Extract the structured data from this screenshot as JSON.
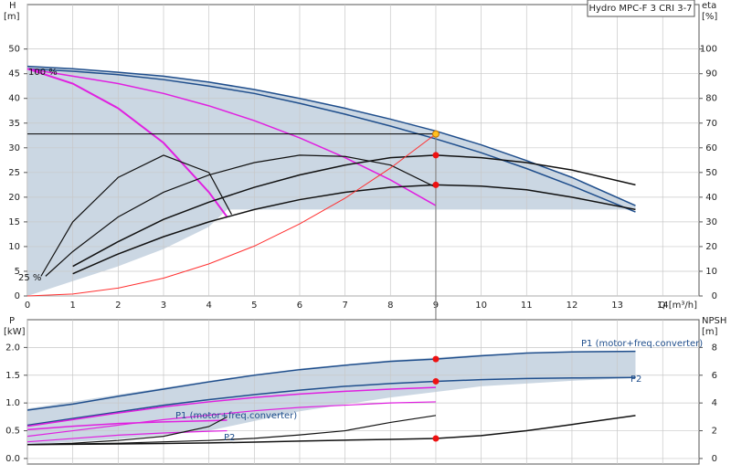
{
  "chart_data": [
    {
      "type": "line",
      "title": "Hydro MPC-F 3 CRI 3-7",
      "xlabel": "Q [m³/h]",
      "ylabel": "H",
      "yunit": "[m]",
      "y2label": "eta",
      "y2unit": "[%]",
      "xlim": [
        0,
        14.8
      ],
      "ylim": [
        0,
        59
      ],
      "y2lim": [
        0,
        118
      ],
      "xticks": [
        0,
        1,
        2,
        3,
        4,
        5,
        6,
        7,
        8,
        9,
        10,
        11,
        12,
        13,
        14
      ],
      "yticks": [
        0,
        5,
        10,
        15,
        20,
        25,
        30,
        35,
        40,
        45,
        50
      ],
      "y2ticks": [
        0,
        10,
        20,
        30,
        40,
        50,
        60,
        70,
        80,
        90,
        100
      ],
      "grid": true,
      "band": {
        "color": "#cbd7e3",
        "x": [
          0,
          1,
          2,
          3,
          4,
          4.4,
          5,
          6,
          7,
          8,
          9,
          10,
          11,
          12,
          13.4
        ],
        "upper": [
          46.5,
          46,
          45.3,
          44.5,
          43.3,
          42.6,
          41.8,
          40,
          38,
          35.8,
          33.4,
          30.6,
          27.4,
          24,
          18.3
        ],
        "lower": [
          0,
          3,
          6,
          9.5,
          14,
          17.5,
          17.5,
          17.5,
          17.5,
          17.5,
          17.5,
          17.5,
          17.5,
          17.5,
          17.5
        ]
      },
      "series": [
        {
          "color": "#1f4e8c",
          "width": 1.5,
          "x": [
            0,
            1,
            2,
            3,
            4,
            5,
            6,
            7,
            8,
            9,
            10,
            11,
            12,
            13.4
          ],
          "values": [
            46.5,
            46,
            45.3,
            44.5,
            43.3,
            41.8,
            40,
            38,
            35.8,
            33.4,
            30.6,
            27.4,
            24,
            18.3
          ]
        },
        {
          "color": "#1f4e8c",
          "width": 1.5,
          "x": [
            0,
            1,
            2,
            3,
            4,
            5,
            6,
            7,
            8,
            9,
            10,
            11,
            12,
            13.4
          ],
          "values": [
            46,
            45.5,
            44.8,
            43.8,
            42.5,
            41,
            39,
            36.8,
            34.4,
            31.8,
            29,
            25.8,
            22.3,
            17
          ]
        },
        {
          "color": "#e020e0",
          "width": 1.5,
          "x": [
            0,
            1,
            2,
            3,
            4,
            5,
            6,
            7,
            8,
            9
          ],
          "values": [
            46,
            44.5,
            43,
            41,
            38.5,
            35.5,
            32,
            28,
            23.5,
            18.3
          ]
        },
        {
          "color": "#e020e0",
          "width": 2,
          "x": [
            0,
            1,
            2,
            3,
            4,
            4.4
          ],
          "values": [
            46,
            43,
            38,
            31,
            21,
            16
          ]
        },
        {
          "color": "#111111",
          "width": 1.5,
          "axis": "y2",
          "x": [
            1,
            2,
            3,
            4,
            5,
            6,
            7,
            8,
            9,
            10,
            11,
            12,
            13.4
          ],
          "values": [
            12,
            22,
            31,
            38,
            44,
            49,
            53,
            56,
            57,
            56,
            54,
            51,
            45
          ]
        },
        {
          "color": "#111111",
          "width": 1.5,
          "axis": "y2",
          "x": [
            1,
            2,
            3,
            4,
            5,
            6,
            7,
            8,
            9,
            10,
            11,
            12,
            13.4
          ],
          "values": [
            9,
            17,
            24,
            30,
            35,
            39,
            42,
            44,
            45,
            44.5,
            43,
            40,
            35
          ]
        },
        {
          "color": "#111111",
          "width": 1.2,
          "axis": "y2",
          "x": [
            0.4,
            1,
            2,
            3,
            4,
            5,
            6,
            7,
            8,
            9
          ],
          "values": [
            8,
            18,
            32,
            42,
            49,
            54,
            57,
            56.5,
            53,
            44
          ]
        },
        {
          "color": "#111111",
          "width": 1.2,
          "axis": "y2",
          "x": [
            0.3,
            1,
            2,
            3,
            4,
            4.5
          ],
          "values": [
            8,
            30,
            48,
            57,
            50,
            33
          ]
        },
        {
          "color": "#ff3030",
          "width": 1,
          "x": [
            0,
            1,
            2,
            3,
            4,
            5,
            6,
            7,
            8,
            9
          ],
          "values": [
            0,
            0.4,
            1.6,
            3.6,
            6.5,
            10.1,
            14.6,
            19.8,
            25.9,
            32.8
          ]
        }
      ],
      "points": [
        {
          "x": 9,
          "y": 32.8,
          "color": "#ffc020"
        },
        {
          "x": 9,
          "y": 57,
          "axis": "y2",
          "color": "#ee1111"
        },
        {
          "x": 9,
          "y": 45,
          "axis": "y2",
          "color": "#ee1111"
        }
      ],
      "duty": {
        "x": 9,
        "y": 32.8
      },
      "annotations": [
        {
          "text": "100 %",
          "color": "#111111"
        },
        {
          "text": "25 %",
          "color": "#111111"
        }
      ]
    },
    {
      "type": "line",
      "ylabel": "P",
      "yunit": "[kW]",
      "y2label": "NPSH",
      "y2unit": "[m]",
      "xlim": [
        0,
        14.8
      ],
      "ylim": [
        -0.1,
        2.5
      ],
      "y2lim": [
        -0.4,
        10
      ],
      "yticks": [
        {
          "value": 0,
          "label": "0.0"
        },
        0.5,
        {
          "value": 1,
          "label": "1.0"
        },
        1.5,
        {
          "value": 2,
          "label": "2.0"
        }
      ],
      "y2ticks": [
        0,
        2,
        4,
        6,
        8
      ],
      "grid": true,
      "band": {
        "color": "#cbd7e3",
        "x": [
          0,
          2,
          4,
          6,
          8,
          10,
          12,
          13.4
        ],
        "upper": [
          0.9,
          1.15,
          1.4,
          1.62,
          1.77,
          1.87,
          1.93,
          1.94
        ],
        "lower": [
          0.25,
          0.35,
          0.5,
          0.85,
          1.1,
          1.3,
          1.4,
          1.45
        ]
      },
      "series": [
        {
          "color": "#1f4e8c",
          "width": 1.5,
          "x": [
            0,
            1,
            2,
            3,
            4,
            5,
            6,
            7,
            8,
            9,
            10,
            11,
            12,
            13.4
          ],
          "values": [
            0.87,
            0.98,
            1.12,
            1.25,
            1.38,
            1.5,
            1.6,
            1.68,
            1.75,
            1.79,
            1.85,
            1.9,
            1.92,
            1.93
          ]
        },
        {
          "color": "#1f4e8c",
          "width": 1.5,
          "x": [
            0,
            1,
            2,
            3,
            4,
            5,
            6,
            7,
            8,
            9,
            10,
            11,
            12,
            13.4
          ],
          "values": [
            0.6,
            0.72,
            0.84,
            0.96,
            1.06,
            1.15,
            1.23,
            1.3,
            1.35,
            1.39,
            1.42,
            1.44,
            1.45,
            1.46
          ]
        },
        {
          "color": "#e020e0",
          "width": 1.5,
          "x": [
            0,
            1,
            2,
            3,
            4,
            5,
            6,
            7,
            8,
            9
          ],
          "values": [
            0.58,
            0.7,
            0.82,
            0.93,
            1.02,
            1.1,
            1.16,
            1.21,
            1.25,
            1.28
          ]
        },
        {
          "color": "#e020e0",
          "width": 1.2,
          "x": [
            0,
            1,
            2,
            3,
            4,
            5,
            6,
            7,
            8,
            9
          ],
          "values": [
            0.4,
            0.5,
            0.6,
            0.7,
            0.78,
            0.86,
            0.92,
            0.96,
            1.0,
            1.02
          ]
        },
        {
          "color": "#e020e0",
          "width": 1.5,
          "x": [
            0,
            1,
            2,
            3,
            4,
            4.4
          ],
          "values": [
            0.52,
            0.58,
            0.63,
            0.66,
            0.68,
            0.69
          ]
        },
        {
          "color": "#e020e0",
          "width": 1.2,
          "x": [
            0,
            1,
            2,
            3,
            4,
            4.4
          ],
          "values": [
            0.3,
            0.36,
            0.42,
            0.46,
            0.49,
            0.5
          ]
        },
        {
          "color": "#111111",
          "width": 1.5,
          "axis": "y2",
          "x": [
            0,
            1,
            2,
            3,
            4,
            5,
            6,
            7,
            8,
            9,
            10,
            11,
            12,
            13.4
          ],
          "values": [
            1.0,
            1.02,
            1.05,
            1.08,
            1.12,
            1.18,
            1.25,
            1.32,
            1.38,
            1.44,
            1.65,
            2.0,
            2.45,
            3.1
          ]
        },
        {
          "color": "#111111",
          "width": 1.2,
          "axis": "y2",
          "x": [
            0,
            1,
            2,
            3,
            4,
            5,
            6,
            7,
            8,
            9
          ],
          "values": [
            1.0,
            1.05,
            1.1,
            1.2,
            1.3,
            1.45,
            1.7,
            2.0,
            2.6,
            3.1
          ]
        },
        {
          "color": "#111111",
          "width": 1.2,
          "axis": "y2",
          "x": [
            0,
            1,
            2,
            3,
            4,
            4.4
          ],
          "values": [
            1.0,
            1.1,
            1.3,
            1.6,
            2.3,
            3.0
          ]
        }
      ],
      "points": [
        {
          "x": 9,
          "y": 1.79,
          "color": "#ee1111"
        },
        {
          "x": 9,
          "y": 1.39,
          "color": "#ee1111"
        },
        {
          "x": 9,
          "y": 1.44,
          "axis": "y2",
          "color": "#ee1111"
        }
      ],
      "annotations": [
        {
          "text": "P1 (motor+freq.converter)",
          "color": "#1f4e8c"
        },
        {
          "text": "P2",
          "color": "#1f4e8c"
        },
        {
          "text": "P1 (motor+freq.converter)",
          "color": "#1f4e8c"
        },
        {
          "text": "P2",
          "color": "#1f4e8c"
        }
      ]
    }
  ]
}
